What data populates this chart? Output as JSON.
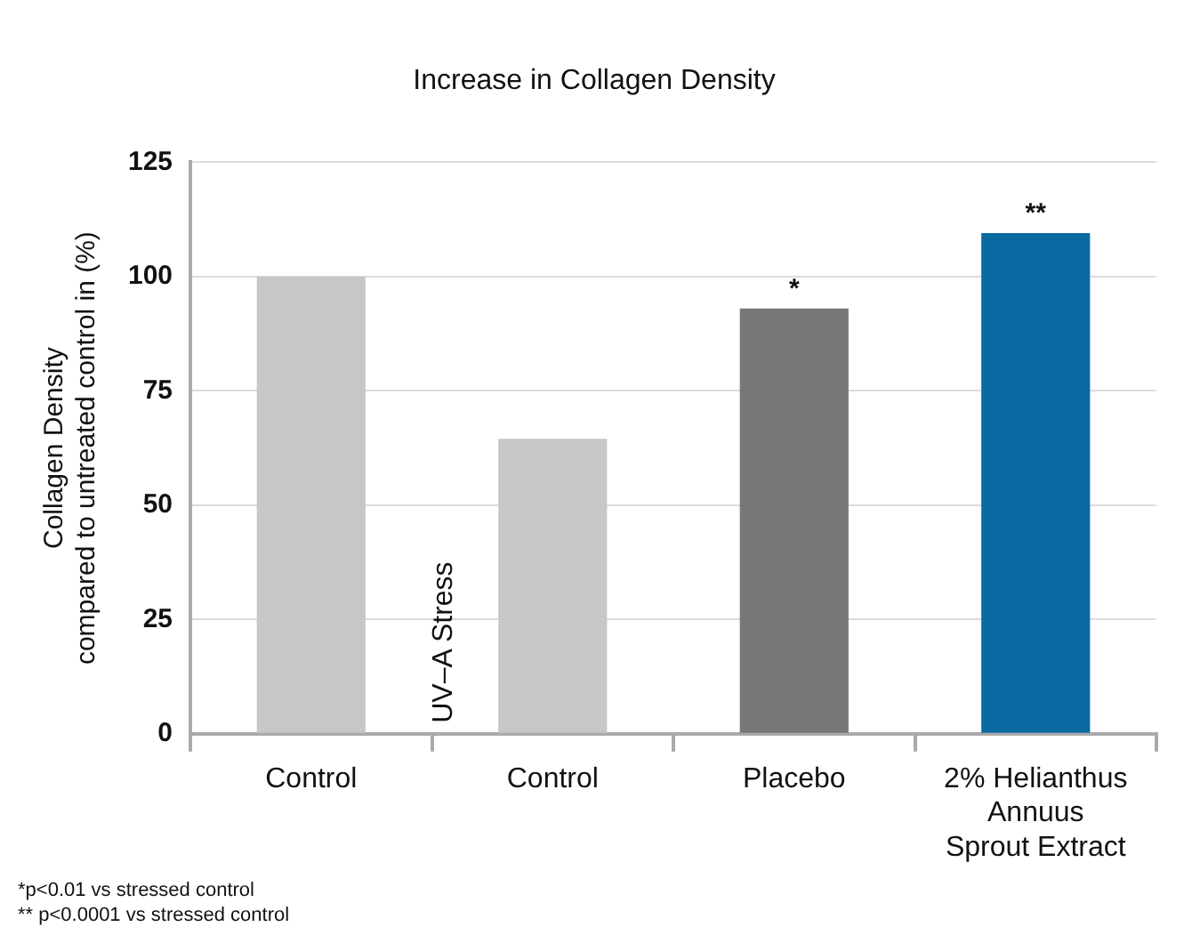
{
  "chart_data": {
    "type": "bar",
    "title": "Increase in Collagen Density",
    "ylabel": "Collagen Density\ncompared to untreated control in (%)",
    "categories": [
      "Control",
      "Control",
      "Placebo",
      "2% Helianthus\nAnnuus\nSprout Extract"
    ],
    "values": [
      100,
      64.5,
      93,
      109.5
    ],
    "colors": [
      "#c8c6c7",
      "#c8c6c7",
      "#787878",
      "#0a6aa1"
    ],
    "ylim": [
      0,
      125
    ],
    "yticks": [
      0,
      25,
      50,
      75,
      100,
      125
    ],
    "grid": "y",
    "legend": false,
    "annotations": [
      {
        "text": "*",
        "x": "Placebo",
        "y": 93
      },
      {
        "text": "**",
        "x": "2% Helianthus\nAnnuus\nSprout Extract",
        "y": 109.5
      },
      "UV–A Stress",
      "*p<0.01 vs stressed control",
      "** p<0.0001 vs stressed control"
    ]
  }
}
